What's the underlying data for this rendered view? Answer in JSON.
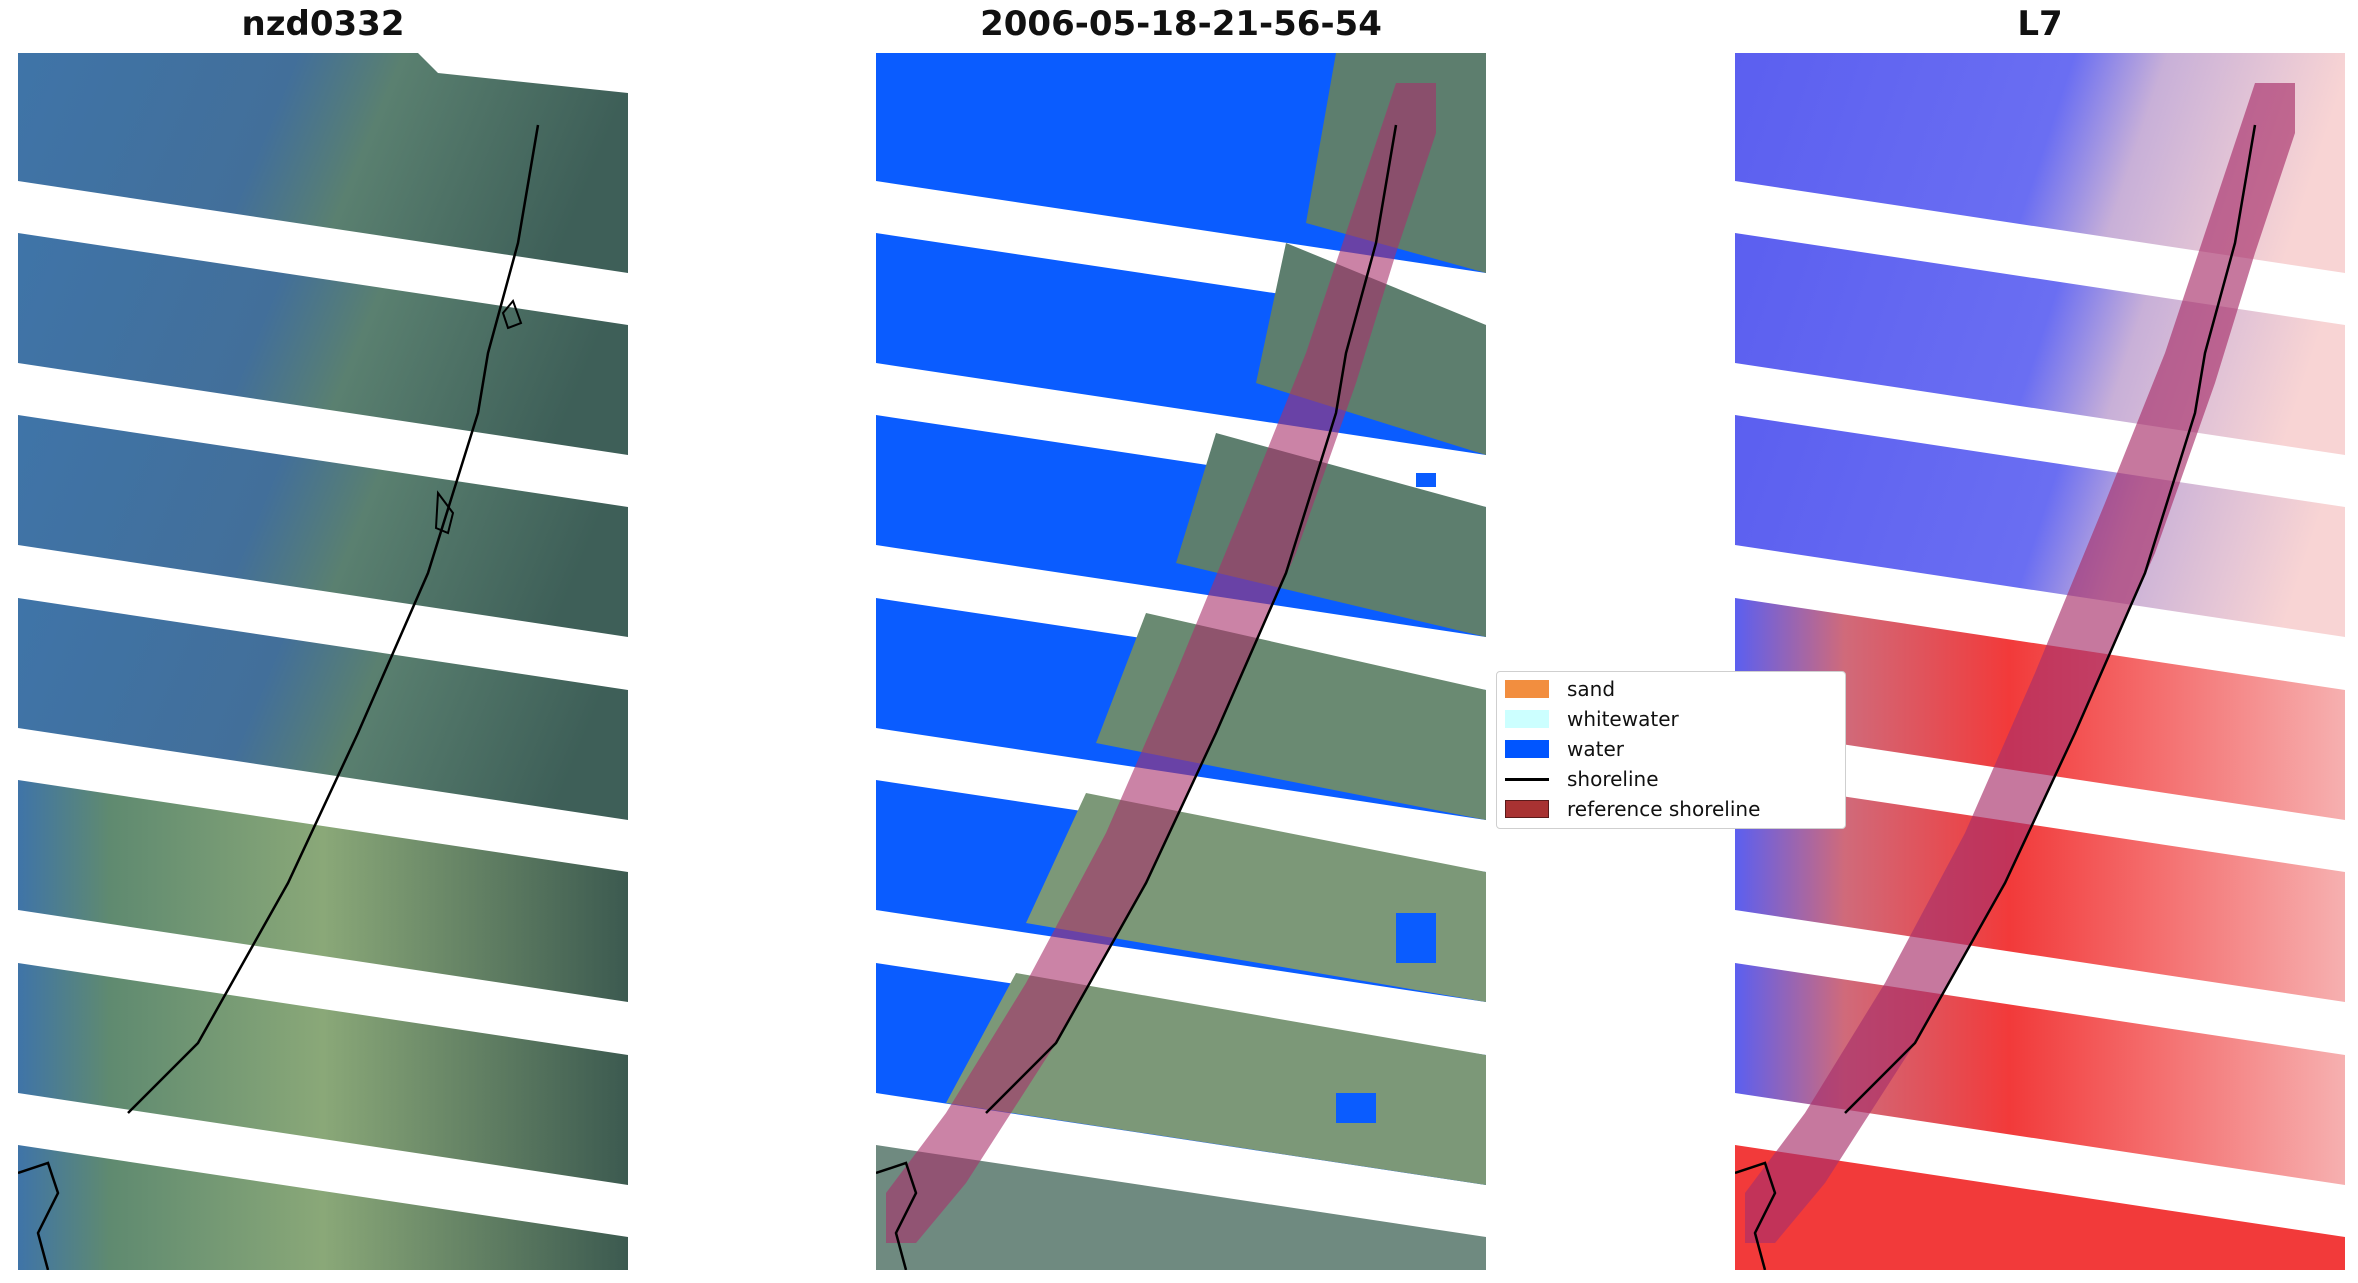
{
  "panels": [
    {
      "id": "rgb",
      "title": "nzd0332"
    },
    {
      "id": "classified",
      "title": "2006-05-18-21-56-54"
    },
    {
      "id": "index",
      "title": "L7"
    }
  ],
  "legend": {
    "items": [
      {
        "label": "sand",
        "type": "patch",
        "color": "#f28e3f"
      },
      {
        "label": "whitewater",
        "type": "patch",
        "color": "#ccffff"
      },
      {
        "label": "water",
        "type": "patch",
        "color": "#0055ff"
      },
      {
        "label": "shoreline",
        "type": "line",
        "color": "#000000"
      },
      {
        "label": "reference shoreline",
        "type": "patch",
        "color": "#a83232"
      }
    ]
  },
  "colors": {
    "water_rgb": "#3f74a8",
    "land_rgb": "#4a6a58",
    "water_class": "#0a5cff",
    "reference_buffer": "#a8306a",
    "index_water": "#5b5ff0",
    "index_land": "#f23a3a"
  }
}
